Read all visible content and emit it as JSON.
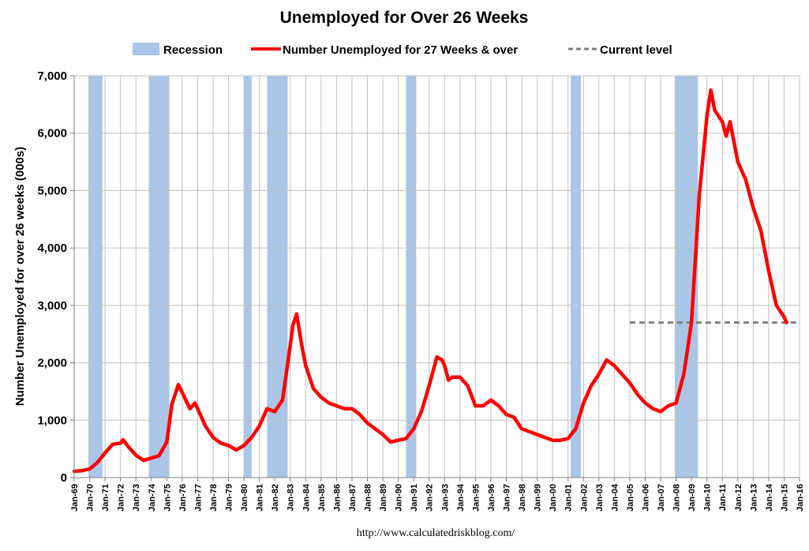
{
  "chart_data": {
    "type": "line",
    "title": "Unemployed for Over 26 Weeks",
    "ylabel": "Number Unemployed for over 26 weeks (000s)",
    "source": "http://www.calculatedriskblog.com/",
    "ylim": [
      0,
      7000
    ],
    "yticks": [
      "0",
      "1,000",
      "2,000",
      "3,000",
      "4,000",
      "5,000",
      "6,000",
      "7,000"
    ],
    "ytick_values": [
      0,
      1000,
      2000,
      3000,
      4000,
      5000,
      6000,
      7000
    ],
    "xlim": [
      1969.0,
      2016.0
    ],
    "xticks": [
      "Jan-69",
      "Jan-70",
      "Jan-71",
      "Jan-72",
      "Jan-73",
      "Jan-74",
      "Jan-75",
      "Jan-76",
      "Jan-77",
      "Jan-78",
      "Jan-79",
      "Jan-80",
      "Jan-81",
      "Jan-82",
      "Jan-83",
      "Jan-84",
      "Jan-85",
      "Jan-86",
      "Jan-87",
      "Jan-88",
      "Jan-89",
      "Jan-90",
      "Jan-91",
      "Jan-92",
      "Jan-93",
      "Jan-94",
      "Jan-95",
      "Jan-96",
      "Jan-97",
      "Jan-98",
      "Jan-99",
      "Jan-00",
      "Jan-01",
      "Jan-02",
      "Jan-03",
      "Jan-04",
      "Jan-05",
      "Jan-06",
      "Jan-07",
      "Jan-08",
      "Jan-09",
      "Jan-10",
      "Jan-11",
      "Jan-12",
      "Jan-13",
      "Jan-14",
      "Jan-15",
      "Jan-16"
    ],
    "grid": true,
    "legend_position": "top",
    "legend": {
      "recession": "Recession",
      "series": "Number Unemployed for 27 Weeks & over",
      "current": "Current level"
    },
    "colors": {
      "recession": "#a9c6ea",
      "series": "#ff0000",
      "current": "#808080",
      "grid": "#c0c0c0"
    },
    "recessions": [
      {
        "start": "Dec-69",
        "end": "Nov-70"
      },
      {
        "start": "Nov-73",
        "end": "Mar-75"
      },
      {
        "start": "Jan-80",
        "end": "Jul-80"
      },
      {
        "start": "Jul-81",
        "end": "Nov-82"
      },
      {
        "start": "Jul-90",
        "end": "Mar-91"
      },
      {
        "start": "Mar-01",
        "end": "Nov-01"
      },
      {
        "start": "Dec-07",
        "end": "Jun-09"
      }
    ],
    "current_level": {
      "value": 2700,
      "from": "Jan-05",
      "to": "Mar-15"
    },
    "series": [
      {
        "name": "Number Unemployed for 27 Weeks & over",
        "points": [
          [
            "Jan-69",
            110
          ],
          [
            "Jul-69",
            120
          ],
          [
            "Jan-70",
            150
          ],
          [
            "Jul-70",
            260
          ],
          [
            "Jan-71",
            430
          ],
          [
            "Jul-71",
            580
          ],
          [
            "Jan-72",
            600
          ],
          [
            "Mar-72",
            660
          ],
          [
            "Jul-72",
            540
          ],
          [
            "Jan-73",
            390
          ],
          [
            "Jul-73",
            300
          ],
          [
            "Jan-74",
            340
          ],
          [
            "Jul-74",
            380
          ],
          [
            "Jan-75",
            620
          ],
          [
            "May-75",
            1280
          ],
          [
            "Oct-75",
            1620
          ],
          [
            "Jan-76",
            1480
          ],
          [
            "Jul-76",
            1200
          ],
          [
            "Nov-76",
            1300
          ],
          [
            "Jan-77",
            1200
          ],
          [
            "Jul-77",
            900
          ],
          [
            "Jan-78",
            700
          ],
          [
            "Jul-78",
            600
          ],
          [
            "Jan-79",
            560
          ],
          [
            "Jul-79",
            480
          ],
          [
            "Jan-80",
            560
          ],
          [
            "Jul-80",
            700
          ],
          [
            "Jan-81",
            900
          ],
          [
            "Jul-81",
            1200
          ],
          [
            "Jan-82",
            1150
          ],
          [
            "Jul-82",
            1350
          ],
          [
            "Jan-83",
            2300
          ],
          [
            "Mar-83",
            2650
          ],
          [
            "Jun-83",
            2850
          ],
          [
            "Oct-83",
            2300
          ],
          [
            "Jan-84",
            1950
          ],
          [
            "Jul-84",
            1550
          ],
          [
            "Jan-85",
            1400
          ],
          [
            "Jul-85",
            1300
          ],
          [
            "Jan-86",
            1250
          ],
          [
            "Jul-86",
            1200
          ],
          [
            "Jan-87",
            1200
          ],
          [
            "Jul-87",
            1100
          ],
          [
            "Jan-88",
            950
          ],
          [
            "Jul-88",
            850
          ],
          [
            "Jan-89",
            750
          ],
          [
            "Jul-89",
            620
          ],
          [
            "Jan-90",
            650
          ],
          [
            "Jul-90",
            680
          ],
          [
            "Jan-91",
            850
          ],
          [
            "Jul-91",
            1150
          ],
          [
            "Jan-92",
            1600
          ],
          [
            "Jul-92",
            2100
          ],
          [
            "Nov-92",
            2050
          ],
          [
            "Jan-93",
            1950
          ],
          [
            "Apr-93",
            1700
          ],
          [
            "Jul-93",
            1750
          ],
          [
            "Jan-94",
            1750
          ],
          [
            "Jul-94",
            1600
          ],
          [
            "Jan-95",
            1250
          ],
          [
            "Jul-95",
            1250
          ],
          [
            "Jan-96",
            1350
          ],
          [
            "Jul-96",
            1250
          ],
          [
            "Jan-97",
            1100
          ],
          [
            "Jul-97",
            1050
          ],
          [
            "Jan-98",
            850
          ],
          [
            "Jul-98",
            800
          ],
          [
            "Jan-99",
            750
          ],
          [
            "Jul-99",
            700
          ],
          [
            "Jan-00",
            650
          ],
          [
            "Jul-00",
            650
          ],
          [
            "Jan-01",
            680
          ],
          [
            "Jul-01",
            850
          ],
          [
            "Jan-02",
            1300
          ],
          [
            "Jul-02",
            1600
          ],
          [
            "Jan-03",
            1800
          ],
          [
            "Jul-03",
            2050
          ],
          [
            "Jan-04",
            1950
          ],
          [
            "Jul-04",
            1800
          ],
          [
            "Jan-05",
            1650
          ],
          [
            "Jul-05",
            1450
          ],
          [
            "Jan-06",
            1300
          ],
          [
            "Jul-06",
            1200
          ],
          [
            "Jan-07",
            1150
          ],
          [
            "Jul-07",
            1250
          ],
          [
            "Jan-08",
            1300
          ],
          [
            "Jul-08",
            1800
          ],
          [
            "Jan-09",
            2700
          ],
          [
            "Jul-09",
            4900
          ],
          [
            "Jan-10",
            6300
          ],
          [
            "Apr-10",
            6750
          ],
          [
            "Jul-10",
            6400
          ],
          [
            "Jan-11",
            6200
          ],
          [
            "Apr-11",
            5950
          ],
          [
            "Jul-11",
            6200
          ],
          [
            "Jan-12",
            5500
          ],
          [
            "Jul-12",
            5200
          ],
          [
            "Jan-13",
            4700
          ],
          [
            "Jul-13",
            4300
          ],
          [
            "Jan-14",
            3600
          ],
          [
            "Jul-14",
            3000
          ],
          [
            "Jan-15",
            2800
          ],
          [
            "Mar-15",
            2700
          ]
        ]
      }
    ]
  }
}
